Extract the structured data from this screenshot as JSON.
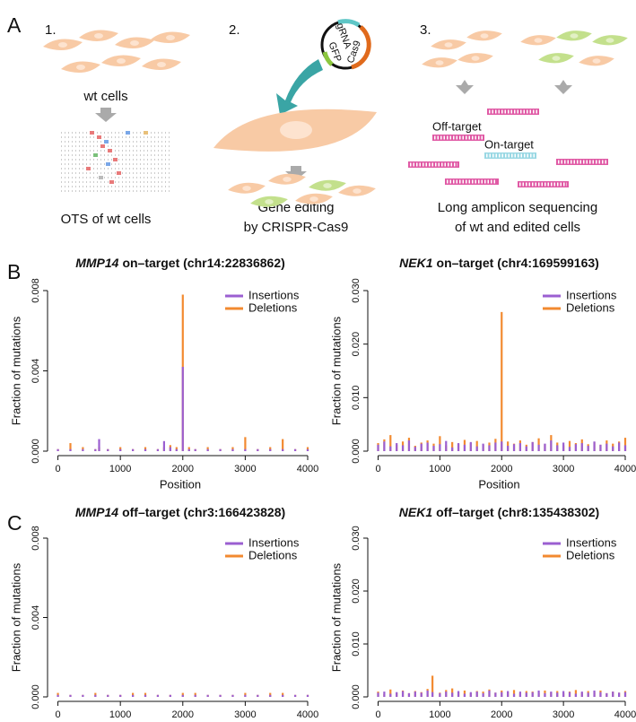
{
  "panel_labels": [
    "A",
    "B",
    "C"
  ],
  "panel_a": {
    "step_numbers": [
      "1.",
      "2.",
      "3."
    ],
    "wt_cells": "wt cells",
    "caption_1": "OTS of wt cells",
    "caption_2": [
      "Gene editing",
      "by CRISPR-Cas9"
    ],
    "caption_3": [
      "Long amplicon sequencing",
      "of wt and edited cells"
    ],
    "off_target": "Off-target",
    "on_target": "On-target",
    "plasmid": [
      "gRNA",
      "GFP",
      "Cas9"
    ]
  },
  "chart_data": [
    {
      "type": "spike",
      "gene": "MMP14",
      "title": "on–target (chr14:22836862)",
      "ylabel": "Fraction of mutations",
      "xlabel": "Position",
      "legend": "top-right",
      "x": [
        0,
        200,
        400,
        600,
        660,
        800,
        1000,
        1200,
        1400,
        1600,
        1700,
        1800,
        1900,
        2000,
        2100,
        2200,
        2400,
        2600,
        2800,
        3000,
        3200,
        3400,
        3600,
        3800,
        4000
      ],
      "series": [
        {
          "name": "Deletions",
          "color": "#f28a30",
          "values": [
            0.0001,
            0.0004,
            0.0002,
            0.0001,
            0.0002,
            0.0001,
            0.0002,
            0.0001,
            0.0002,
            0.0001,
            0.0002,
            0.0003,
            0.0002,
            0.0078,
            0.0002,
            0.0001,
            0.0002,
            0.0001,
            0.0002,
            0.0007,
            0.0001,
            0.0002,
            0.0006,
            0.0001,
            0.0002
          ]
        },
        {
          "name": "Insertions",
          "color": "#9b5fd1",
          "values": [
            0.0001,
            0.0001,
            0.0001,
            0.0001,
            0.0006,
            0.0001,
            0.0001,
            0.0001,
            0.0001,
            0.0001,
            0.0005,
            0.0002,
            0.0001,
            0.0042,
            0.0001,
            0.0001,
            0.0001,
            0.0001,
            0.0001,
            0.0001,
            0.0001,
            0.0001,
            0.0001,
            0.0001,
            0.0001
          ]
        }
      ],
      "xlim": [
        -80,
        4000
      ],
      "xticks": [
        0,
        1000,
        2000,
        3000,
        4000
      ],
      "ylim": [
        0,
        0.008
      ],
      "yticks": [
        {
          "value": 0,
          "label": "0.000"
        },
        0.004,
        0.008
      ]
    },
    {
      "type": "spike",
      "gene": "NEK1",
      "title": "on–target (chr4:169599163)",
      "ylabel": "Fraction of mutations",
      "xlabel": "Position",
      "legend": "top-right",
      "x": [
        0,
        100,
        200,
        300,
        400,
        500,
        600,
        700,
        800,
        900,
        1000,
        1100,
        1200,
        1300,
        1400,
        1500,
        1600,
        1700,
        1800,
        1900,
        2000,
        2100,
        2200,
        2300,
        2400,
        2500,
        2600,
        2700,
        2800,
        2900,
        3000,
        3100,
        3200,
        3300,
        3400,
        3500,
        3600,
        3700,
        3800,
        3900,
        4000
      ],
      "series": [
        {
          "name": "Deletions",
          "color": "#f28a30",
          "values": [
            0.0015,
            0.0022,
            0.003,
            0.0012,
            0.0018,
            0.0025,
            0.001,
            0.0016,
            0.002,
            0.0014,
            0.0028,
            0.0011,
            0.0017,
            0.0013,
            0.0021,
            0.0015,
            0.0019,
            0.0012,
            0.0016,
            0.0023,
            0.026,
            0.0018,
            0.0014,
            0.002,
            0.0012,
            0.0017,
            0.0024,
            0.0013,
            0.003,
            0.0016,
            0.0011,
            0.0019,
            0.0015,
            0.0022,
            0.0013,
            0.0017,
            0.0012,
            0.002,
            0.0014,
            0.0018,
            0.0025
          ]
        },
        {
          "name": "Insertions",
          "color": "#9b5fd1",
          "values": [
            0.0012,
            0.0018,
            0.0009,
            0.0015,
            0.0011,
            0.002,
            0.0008,
            0.0014,
            0.0016,
            0.001,
            0.0013,
            0.0019,
            0.0007,
            0.0015,
            0.0012,
            0.0017,
            0.0009,
            0.0014,
            0.0011,
            0.0016,
            0.0018,
            0.001,
            0.0013,
            0.0015,
            0.0009,
            0.0017,
            0.0012,
            0.0014,
            0.002,
            0.0011,
            0.0016,
            0.0008,
            0.0013,
            0.0015,
            0.001,
            0.0018,
            0.0012,
            0.0014,
            0.0009,
            0.0016,
            0.0011
          ]
        }
      ],
      "xlim": [
        -80,
        4000
      ],
      "xticks": [
        0,
        1000,
        2000,
        3000,
        4000
      ],
      "ylim": [
        0,
        0.03
      ],
      "yticks": [
        {
          "value": 0,
          "label": "0.000"
        },
        {
          "value": 0.01,
          "label": "0.010"
        },
        {
          "value": 0.02,
          "label": "0.020"
        },
        {
          "value": 0.03,
          "label": "0.030"
        }
      ]
    },
    {
      "type": "spike",
      "gene": "MMP14",
      "title": "off–target (chr3:166423828)",
      "ylabel": "Fraction of mutations",
      "xlabel": "Position",
      "legend": "top-right",
      "x": [
        0,
        200,
        400,
        600,
        800,
        1000,
        1200,
        1400,
        1600,
        1800,
        2000,
        2200,
        2400,
        2600,
        2800,
        3000,
        3200,
        3400,
        3600,
        3800,
        4000
      ],
      "series": [
        {
          "name": "Deletions",
          "color": "#f28a30",
          "values": [
            0.0002,
            0.0001,
            0.0001,
            0.0002,
            0.0001,
            0.0001,
            0.0002,
            0.0002,
            0.0001,
            0.0001,
            0.0002,
            0.0002,
            0.0001,
            0.0001,
            0.0001,
            0.0002,
            0.0001,
            0.0002,
            0.0002,
            0.0001,
            0.0001
          ]
        },
        {
          "name": "Insertions",
          "color": "#9b5fd1",
          "values": [
            0.0001,
            0.0001,
            0.0001,
            0.0001,
            0.0001,
            0.0001,
            0.0001,
            0.0001,
            0.0001,
            0.0001,
            0.0001,
            0.0001,
            0.0001,
            0.0001,
            0.0001,
            0.0001,
            0.0001,
            0.0001,
            0.0001,
            0.0001,
            0.0001
          ]
        }
      ],
      "xlim": [
        -80,
        4000
      ],
      "xticks": [
        0,
        1000,
        2000,
        3000,
        4000
      ],
      "ylim": [
        0,
        0.008
      ],
      "yticks": [
        {
          "value": 0,
          "label": "0.000"
        },
        0.004,
        0.008
      ]
    },
    {
      "type": "spike",
      "gene": "NEK1",
      "title": "off–target (chr8:135438302)",
      "ylabel": "Fraction of mutations",
      "xlabel": "Position",
      "legend": "top-right",
      "x": [
        0,
        100,
        200,
        300,
        400,
        500,
        600,
        700,
        800,
        880,
        1000,
        1100,
        1200,
        1300,
        1400,
        1500,
        1600,
        1700,
        1800,
        1900,
        2000,
        2100,
        2200,
        2300,
        2400,
        2500,
        2600,
        2700,
        2800,
        2900,
        3000,
        3100,
        3200,
        3300,
        3400,
        3500,
        3600,
        3700,
        3800,
        3900,
        4000
      ],
      "series": [
        {
          "name": "Deletions",
          "color": "#f28a30",
          "values": [
            0.001,
            0.0006,
            0.0014,
            0.0008,
            0.0012,
            0.0007,
            0.0011,
            0.0009,
            0.0015,
            0.004,
            0.0008,
            0.0013,
            0.0016,
            0.0009,
            0.0012,
            0.0007,
            0.0011,
            0.001,
            0.0014,
            0.0008,
            0.0012,
            0.0009,
            0.0013,
            0.0007,
            0.0011,
            0.001,
            0.0008,
            0.0012,
            0.0009,
            0.0011,
            0.0007,
            0.001,
            0.0013,
            0.0008,
            0.0011,
            0.0009,
            0.0012,
            0.0007,
            0.001,
            0.0008,
            0.0011
          ]
        },
        {
          "name": "Insertions",
          "color": "#9b5fd1",
          "values": [
            0.0008,
            0.001,
            0.0006,
            0.0009,
            0.0011,
            0.0007,
            0.001,
            0.0008,
            0.0012,
            0.0009,
            0.0007,
            0.001,
            0.0008,
            0.0011,
            0.0006,
            0.0009,
            0.001,
            0.0007,
            0.0012,
            0.0008,
            0.0009,
            0.0011,
            0.0006,
            0.001,
            0.0008,
            0.0009,
            0.0012,
            0.0007,
            0.001,
            0.0008,
            0.0011,
            0.0009,
            0.0006,
            0.001,
            0.0008,
            0.0012,
            0.0009,
            0.0007,
            0.001,
            0.0008,
            0.0009
          ]
        }
      ],
      "xlim": [
        -80,
        4000
      ],
      "xticks": [
        0,
        1000,
        2000,
        3000,
        4000
      ],
      "ylim": [
        0,
        0.03
      ],
      "yticks": [
        {
          "value": 0,
          "label": "0.000"
        },
        {
          "value": 0.01,
          "label": "0.010"
        },
        {
          "value": 0.02,
          "label": "0.020"
        },
        {
          "value": 0.03,
          "label": "0.030"
        }
      ]
    }
  ]
}
